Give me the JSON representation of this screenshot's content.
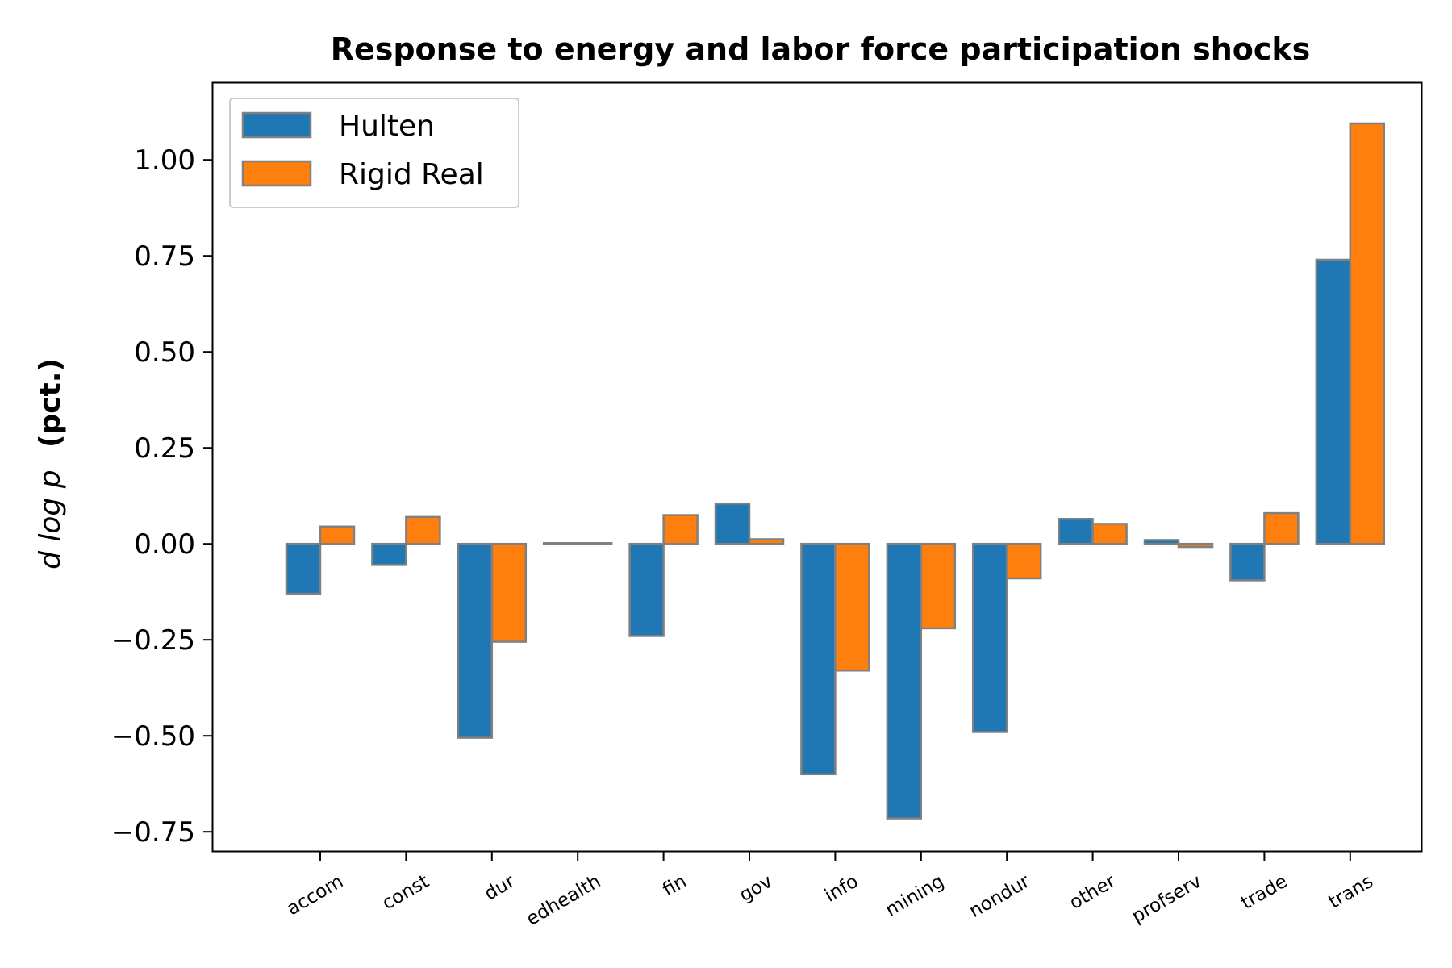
{
  "chart_data": {
    "type": "bar",
    "title": "Response to energy and labor force participation shocks",
    "xlabel": "",
    "ylabel_math": "d log p",
    "ylabel_unit": "(pct.)",
    "categories": [
      "accom",
      "const",
      "dur",
      "edhealth",
      "fin",
      "gov",
      "info",
      "mining",
      "nondur",
      "other",
      "profserv",
      "trade",
      "trans"
    ],
    "series": [
      {
        "name": "Hulten",
        "color": "#1f77b4",
        "values": [
          -0.13,
          -0.055,
          -0.505,
          0.002,
          -0.24,
          0.105,
          -0.6,
          -0.715,
          -0.49,
          0.065,
          0.01,
          -0.095,
          0.74
        ]
      },
      {
        "name": "Rigid Real",
        "color": "#ff7f0e",
        "values": [
          0.045,
          0.07,
          -0.255,
          0.002,
          0.075,
          0.012,
          -0.33,
          -0.22,
          -0.09,
          0.052,
          -0.008,
          0.08,
          1.095
        ]
      }
    ],
    "ylim": [
      -0.8,
      1.2
    ],
    "yticks": [
      "−0.75",
      "−0.50",
      "−0.25",
      "0.00",
      "0.25",
      "0.50",
      "0.75",
      "1.00"
    ],
    "ytick_values": [
      -0.75,
      -0.5,
      -0.25,
      0.0,
      0.25,
      0.5,
      0.75,
      1.0
    ],
    "bar_edge_color": "#808080",
    "grid": false,
    "legend_position": "upper-left"
  }
}
